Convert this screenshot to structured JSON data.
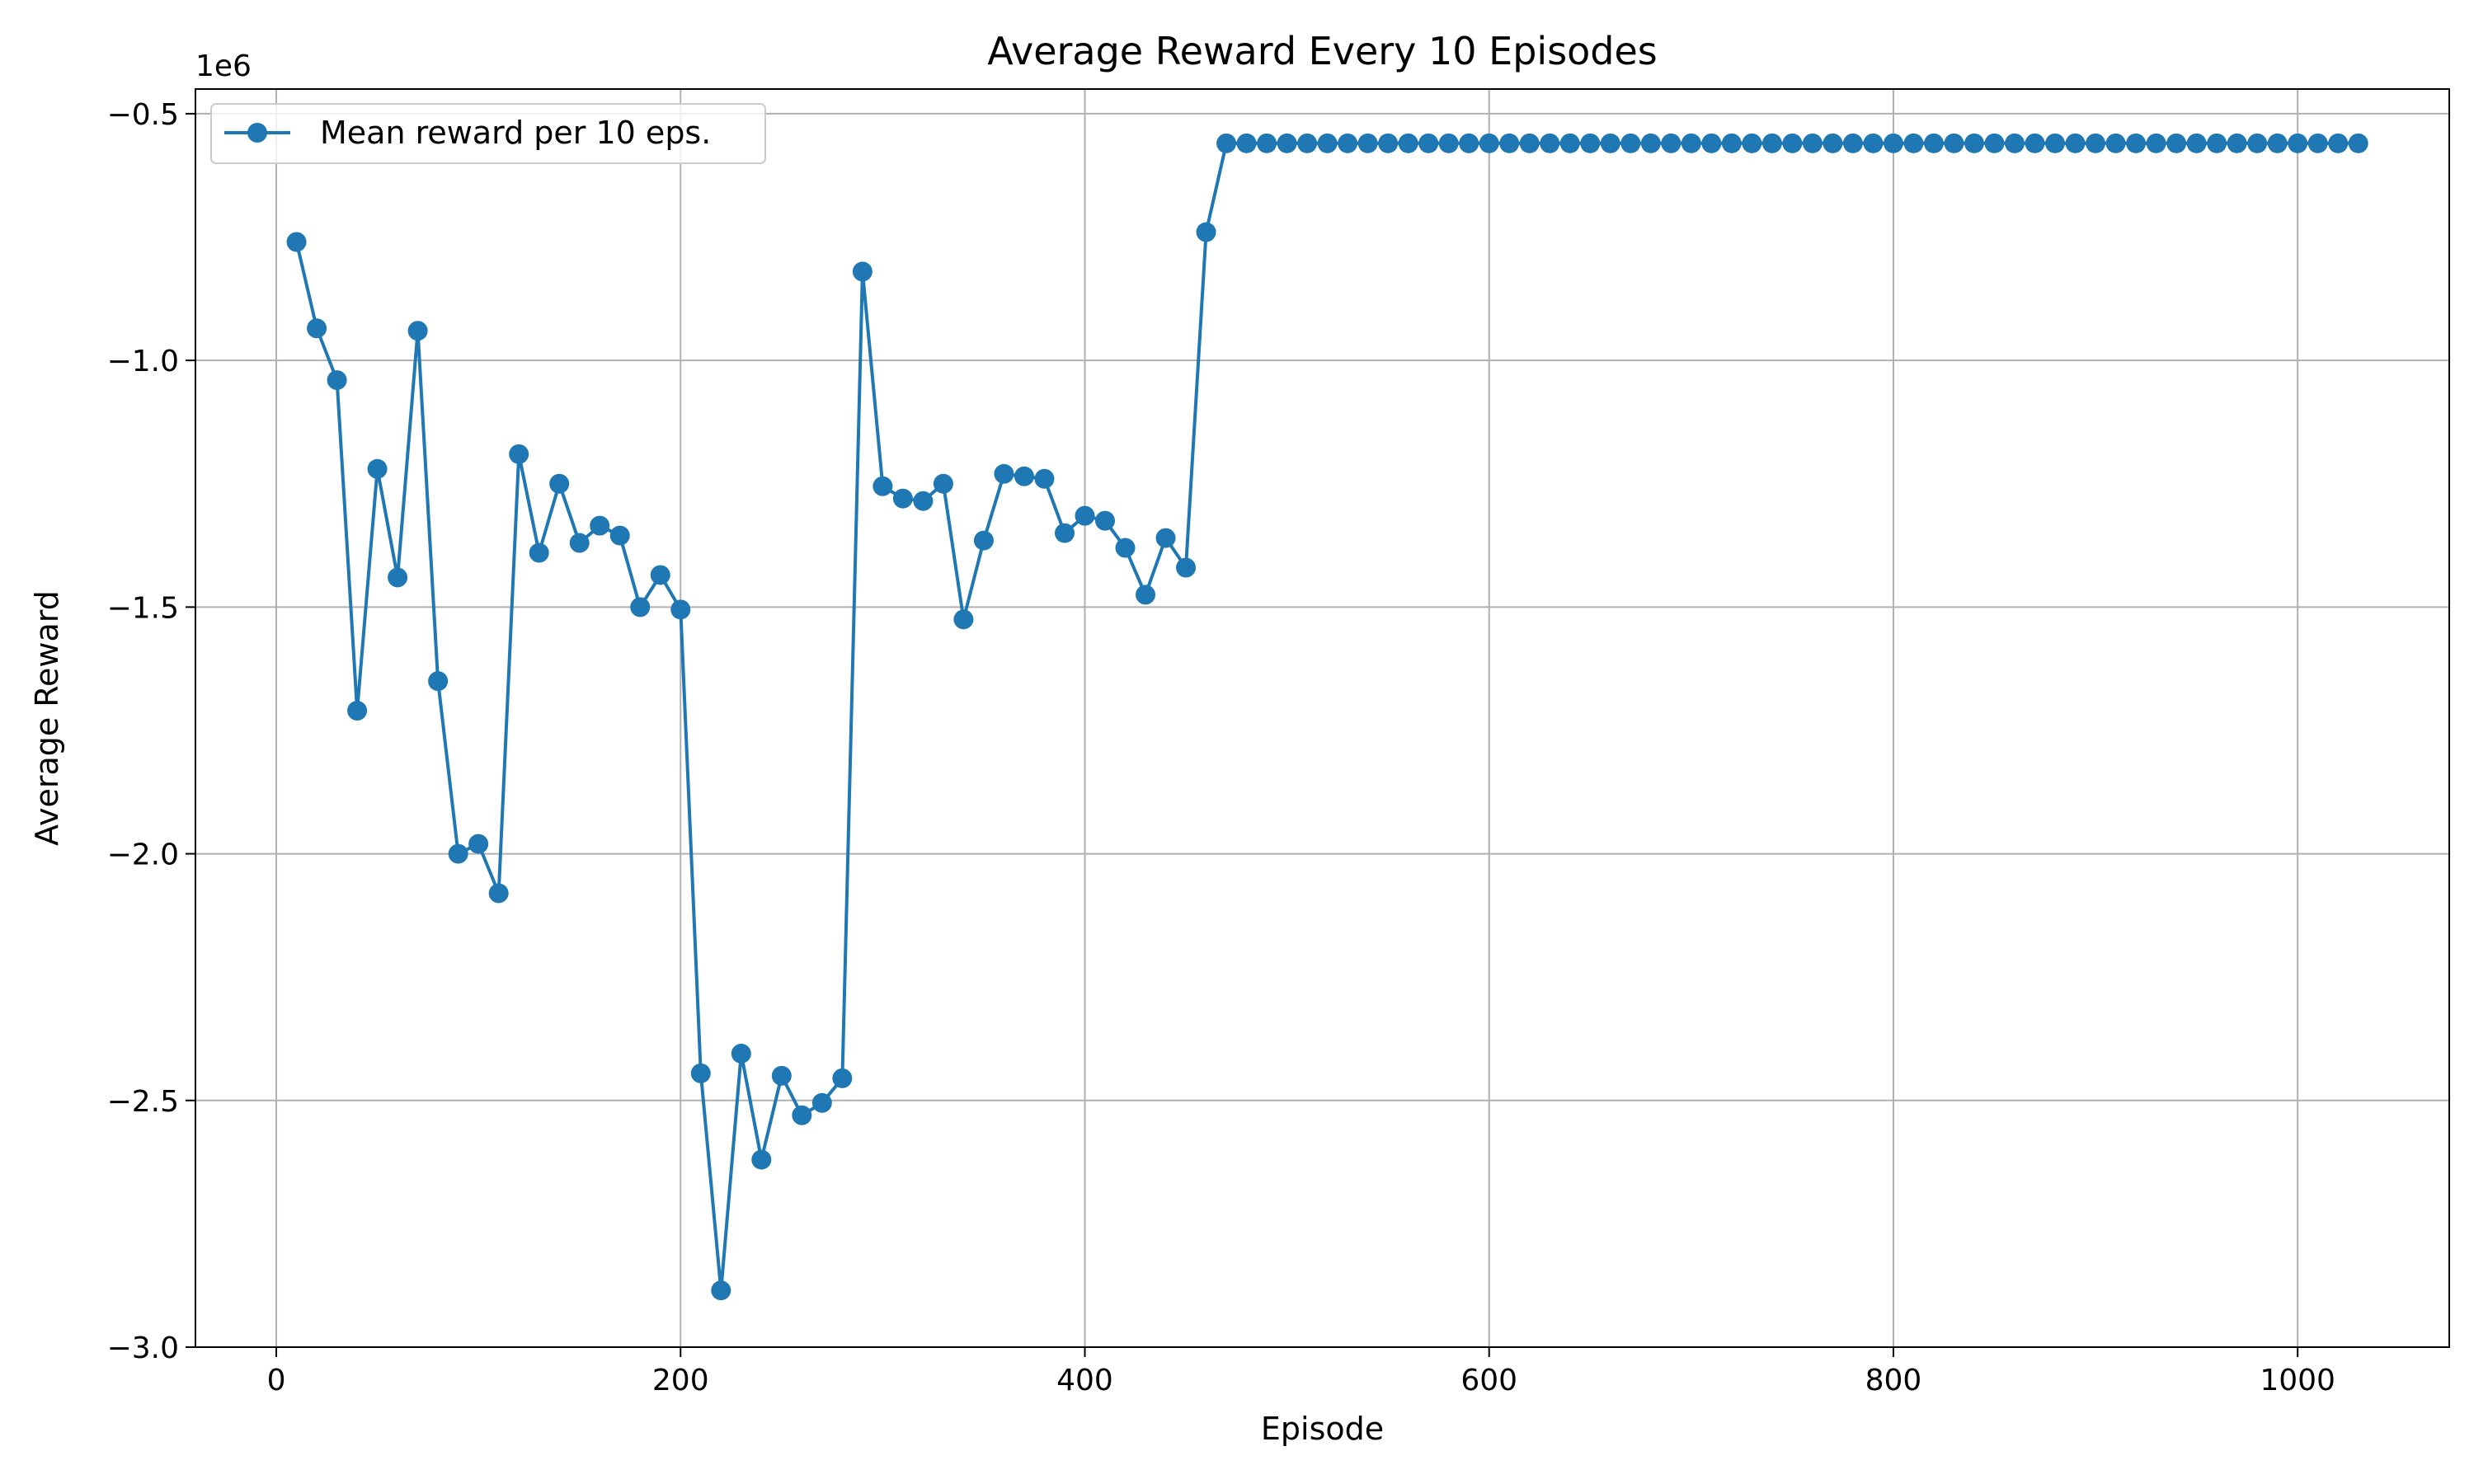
{
  "chart_data": {
    "type": "line",
    "title": "Average Reward Every 10 Episodes",
    "xlabel": "Episode",
    "ylabel": "Average Reward",
    "y_multiplier_label": "1e6",
    "xlim": [
      -40,
      1075
    ],
    "ylim": [
      -3.0,
      -0.45
    ],
    "x_ticks": [
      0,
      200,
      400,
      600,
      800,
      1000
    ],
    "x_tick_labels": [
      "0",
      "200",
      "400",
      "600",
      "800",
      "1000"
    ],
    "y_ticks": [
      -3.0,
      -2.5,
      -2.0,
      -1.5,
      -1.0,
      -0.5
    ],
    "y_tick_labels": [
      "−3.0",
      "−2.5",
      "−2.0",
      "−1.5",
      "−1.0",
      "−0.5"
    ],
    "grid": true,
    "legend_position": "top-left",
    "colors": {
      "series": "#1f77b4",
      "grid": "#b0b0b0",
      "axis": "#000000"
    },
    "series": [
      {
        "name": "Mean reward per 10 eps.",
        "marker": "circle",
        "x": [
          10,
          20,
          30,
          40,
          50,
          60,
          70,
          80,
          90,
          100,
          110,
          120,
          130,
          140,
          150,
          160,
          170,
          180,
          190,
          200,
          210,
          220,
          230,
          240,
          250,
          260,
          270,
          280,
          290,
          300,
          310,
          320,
          330,
          340,
          350,
          360,
          370,
          380,
          390,
          400,
          410,
          420,
          430,
          440,
          450,
          460,
          470,
          480,
          490,
          500,
          510,
          520,
          530,
          540,
          550,
          560,
          570,
          580,
          590,
          600,
          610,
          620,
          630,
          640,
          650,
          660,
          670,
          680,
          690,
          700,
          710,
          720,
          730,
          740,
          750,
          760,
          770,
          780,
          790,
          800,
          810,
          820,
          830,
          840,
          850,
          860,
          870,
          880,
          890,
          900,
          910,
          920,
          930,
          940,
          950,
          960,
          970,
          980,
          990,
          1000,
          1010,
          1020,
          1030
        ],
        "y": [
          -0.76,
          -0.935,
          -1.04,
          -1.71,
          -1.22,
          -1.44,
          -0.94,
          -1.65,
          -2.0,
          -1.98,
          -2.08,
          -1.19,
          -1.39,
          -1.25,
          -1.37,
          -1.335,
          -1.355,
          -1.5,
          -1.435,
          -1.505,
          -2.445,
          -2.885,
          -2.405,
          -2.62,
          -2.45,
          -2.53,
          -2.505,
          -2.455,
          -0.82,
          -1.255,
          -1.28,
          -1.285,
          -1.25,
          -1.525,
          -1.365,
          -1.23,
          -1.235,
          -1.24,
          -1.35,
          -1.315,
          -1.325,
          -1.38,
          -1.475,
          -1.36,
          -1.42,
          -0.74,
          -0.56,
          -0.56,
          -0.56,
          -0.56,
          -0.56,
          -0.56,
          -0.56,
          -0.56,
          -0.56,
          -0.56,
          -0.56,
          -0.56,
          -0.56,
          -0.56,
          -0.56,
          -0.56,
          -0.56,
          -0.56,
          -0.56,
          -0.56,
          -0.56,
          -0.56,
          -0.56,
          -0.56,
          -0.56,
          -0.56,
          -0.56,
          -0.56,
          -0.56,
          -0.56,
          -0.56,
          -0.56,
          -0.56,
          -0.56,
          -0.56,
          -0.56,
          -0.56,
          -0.56,
          -0.56,
          -0.56,
          -0.56,
          -0.56,
          -0.56,
          -0.56,
          -0.56,
          -0.56,
          -0.56,
          -0.56,
          -0.56,
          -0.56,
          -0.56,
          -0.56,
          -0.56,
          -0.56,
          -0.56,
          -0.56,
          -0.56
        ]
      }
    ]
  }
}
